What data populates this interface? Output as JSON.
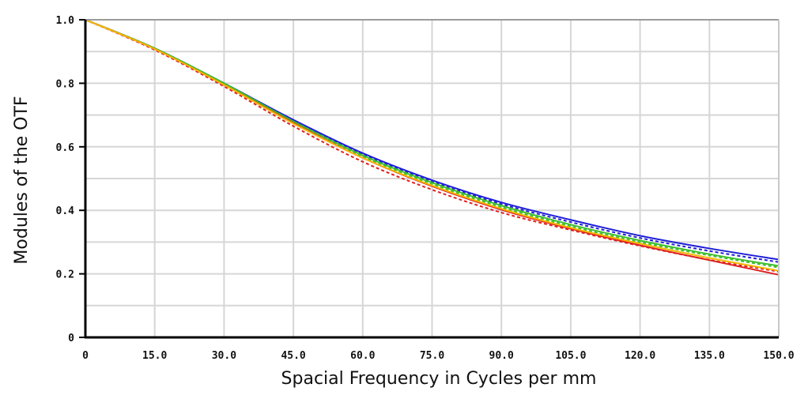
{
  "chart_data": {
    "type": "line",
    "title": "",
    "xlabel": "Spacial Frequency in Cycles per mm",
    "ylabel": "Modules of the OTF",
    "xlim": [
      0,
      150
    ],
    "ylim": [
      0,
      1.0
    ],
    "x_ticks": [
      0,
      15,
      30,
      45,
      60,
      75,
      90,
      105,
      120,
      135,
      150
    ],
    "x_tick_labels": [
      "0",
      "15.0",
      "30.0",
      "45.0",
      "60.0",
      "75.0",
      "90.0",
      "105.0",
      "120.0",
      "135.0",
      "150.0"
    ],
    "y_ticks": [
      0,
      0.2,
      0.4,
      0.6,
      0.8,
      1.0
    ],
    "y_tick_labels": [
      "0",
      "0.2",
      "0.4",
      "0.6",
      "0.8",
      "1.0"
    ],
    "grid": true,
    "x": [
      0,
      15,
      30,
      45,
      60,
      75,
      90,
      105,
      120,
      135,
      150
    ],
    "series": [
      {
        "color": "#1f1fd6",
        "style": "solid",
        "values": [
          1.0,
          0.91,
          0.8,
          0.685,
          0.58,
          0.495,
          0.425,
          0.37,
          0.32,
          0.28,
          0.245
        ]
      },
      {
        "color": "#1f1fd6",
        "style": "dashed",
        "values": [
          1.0,
          0.91,
          0.8,
          0.683,
          0.577,
          0.49,
          0.42,
          0.363,
          0.313,
          0.272,
          0.237
        ]
      },
      {
        "color": "#3fbf2f",
        "style": "solid",
        "values": [
          1.0,
          0.91,
          0.8,
          0.68,
          0.573,
          0.487,
          0.415,
          0.355,
          0.305,
          0.262,
          0.225
        ]
      },
      {
        "color": "#3fbf2f",
        "style": "dashed",
        "values": [
          1.0,
          0.91,
          0.798,
          0.678,
          0.57,
          0.483,
          0.41,
          0.35,
          0.3,
          0.258,
          0.22
        ]
      },
      {
        "color": "#e02020",
        "style": "solid",
        "values": [
          1.0,
          0.908,
          0.795,
          0.675,
          0.565,
          0.476,
          0.402,
          0.342,
          0.29,
          0.243,
          0.197
        ]
      },
      {
        "color": "#e02020",
        "style": "dashed",
        "values": [
          1.0,
          0.905,
          0.79,
          0.665,
          0.553,
          0.465,
          0.393,
          0.338,
          0.288,
          0.244,
          0.207
        ]
      },
      {
        "color": "#f2b800",
        "style": "solid",
        "values": [
          1.0,
          0.908,
          0.795,
          0.673,
          0.565,
          0.478,
          0.405,
          0.345,
          0.295,
          0.25,
          0.21
        ]
      }
    ]
  }
}
